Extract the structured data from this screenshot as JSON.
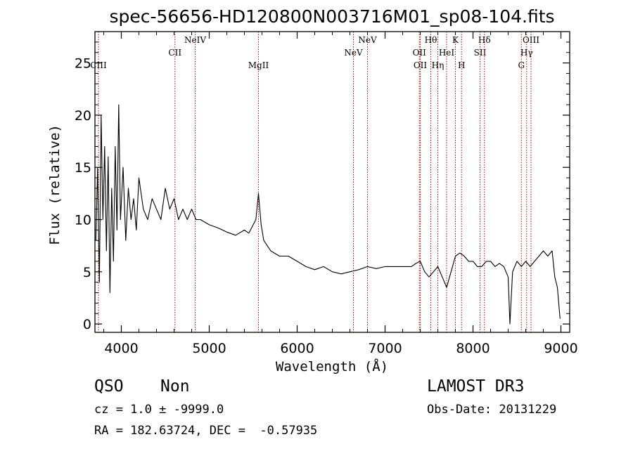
{
  "chart_data": {
    "type": "line",
    "title": "spec-56656-HD120800N003716M01_sp08-104.fits",
    "xlabel": "Wavelength (Å)",
    "ylabel": "Flux (relative)",
    "xlim": [
      3700,
      9100
    ],
    "ylim": [
      -0.8,
      28
    ],
    "xticks": [
      4000,
      5000,
      6000,
      7000,
      8000,
      9000
    ],
    "yticks": [
      0,
      5,
      10,
      15,
      20,
      25
    ],
    "lines_color": "#cc0000",
    "spectrum_color": "#000000",
    "spectral_lines": [
      {
        "label": "CIII",
        "wavelength": 3740,
        "row": 3
      },
      {
        "label": "CII",
        "wavelength": 4610,
        "row": 2
      },
      {
        "label": "NeIV",
        "wavelength": 4840,
        "row": 1
      },
      {
        "label": "MgII",
        "wavelength": 5560,
        "row": 3
      },
      {
        "label": "NeV",
        "wavelength": 6640,
        "row": 2
      },
      {
        "label": "NeV",
        "wavelength": 6800,
        "row": 1
      },
      {
        "label": "OII",
        "wavelength": 7390,
        "row": 2
      },
      {
        "label": "OII",
        "wavelength": 7400,
        "row": 3
      },
      {
        "label": "Hθ",
        "wavelength": 7520,
        "row": 1
      },
      {
        "label": "Hη",
        "wavelength": 7600,
        "row": 3
      },
      {
        "label": "HeI",
        "wavelength": 7700,
        "row": 2
      },
      {
        "label": "K",
        "wavelength": 7800,
        "row": 1
      },
      {
        "label": "H",
        "wavelength": 7870,
        "row": 3
      },
      {
        "label": "SII",
        "wavelength": 8080,
        "row": 2
      },
      {
        "label": "Hδ",
        "wavelength": 8130,
        "row": 1
      },
      {
        "label": "G",
        "wavelength": 8550,
        "row": 3
      },
      {
        "label": "Hγ",
        "wavelength": 8610,
        "row": 2
      },
      {
        "label": "OIII",
        "wavelength": 8660,
        "row": 1
      }
    ],
    "series": [
      {
        "name": "spectrum",
        "x": [
          3710,
          3730,
          3750,
          3770,
          3790,
          3810,
          3830,
          3850,
          3870,
          3890,
          3910,
          3930,
          3950,
          3970,
          3990,
          4020,
          4050,
          4080,
          4110,
          4140,
          4170,
          4200,
          4250,
          4300,
          4350,
          4400,
          4450,
          4500,
          4550,
          4600,
          4650,
          4700,
          4750,
          4800,
          4850,
          4900,
          5000,
          5100,
          5200,
          5300,
          5400,
          5450,
          5500,
          5530,
          5560,
          5590,
          5620,
          5660,
          5700,
          5800,
          5900,
          6000,
          6100,
          6200,
          6300,
          6400,
          6500,
          6600,
          6700,
          6800,
          6900,
          7000,
          7100,
          7200,
          7300,
          7350,
          7400,
          7450,
          7500,
          7550,
          7600,
          7650,
          7700,
          7750,
          7800,
          7850,
          7900,
          7950,
          8000,
          8050,
          8100,
          8150,
          8200,
          8250,
          8300,
          8350,
          8400,
          8420,
          8450,
          8500,
          8550,
          8600,
          8650,
          8700,
          8750,
          8800,
          8850,
          8900,
          8930,
          8960,
          8990
        ],
        "values": [
          8,
          15,
          4,
          20,
          10,
          17,
          7,
          16,
          3,
          13,
          6,
          17,
          9,
          21,
          10,
          15,
          8,
          13,
          10,
          12,
          9,
          14,
          11,
          10,
          12,
          11,
          10,
          13,
          11,
          12,
          10,
          11,
          10,
          11,
          10,
          10,
          9.5,
          9.2,
          8.8,
          8.5,
          9,
          8.7,
          9.5,
          10,
          12.5,
          9.5,
          8,
          7.5,
          7,
          6.5,
          6.5,
          6,
          5.5,
          5.2,
          5.5,
          5,
          4.8,
          5,
          5.2,
          5.5,
          5.3,
          5.5,
          5.5,
          5.5,
          5.5,
          5.8,
          6,
          5,
          4.5,
          5,
          5.5,
          4.5,
          3.5,
          5,
          6.5,
          6.8,
          6.5,
          6,
          6,
          5.5,
          5.5,
          6,
          6,
          5.5,
          5.8,
          5.5,
          4.5,
          0,
          5,
          6,
          5.5,
          6,
          5.5,
          6,
          6.5,
          7,
          6.5,
          7,
          4.5,
          3.5,
          0.5
        ]
      }
    ]
  },
  "info": {
    "class": "QSO",
    "subclass": "Non",
    "survey": "LAMOST DR3",
    "cz": "cz = 1.0 ± -9999.0",
    "obs_date": "Obs-Date: 20131229",
    "radec": "RA = 182.63724, DEC =  -0.57935"
  }
}
